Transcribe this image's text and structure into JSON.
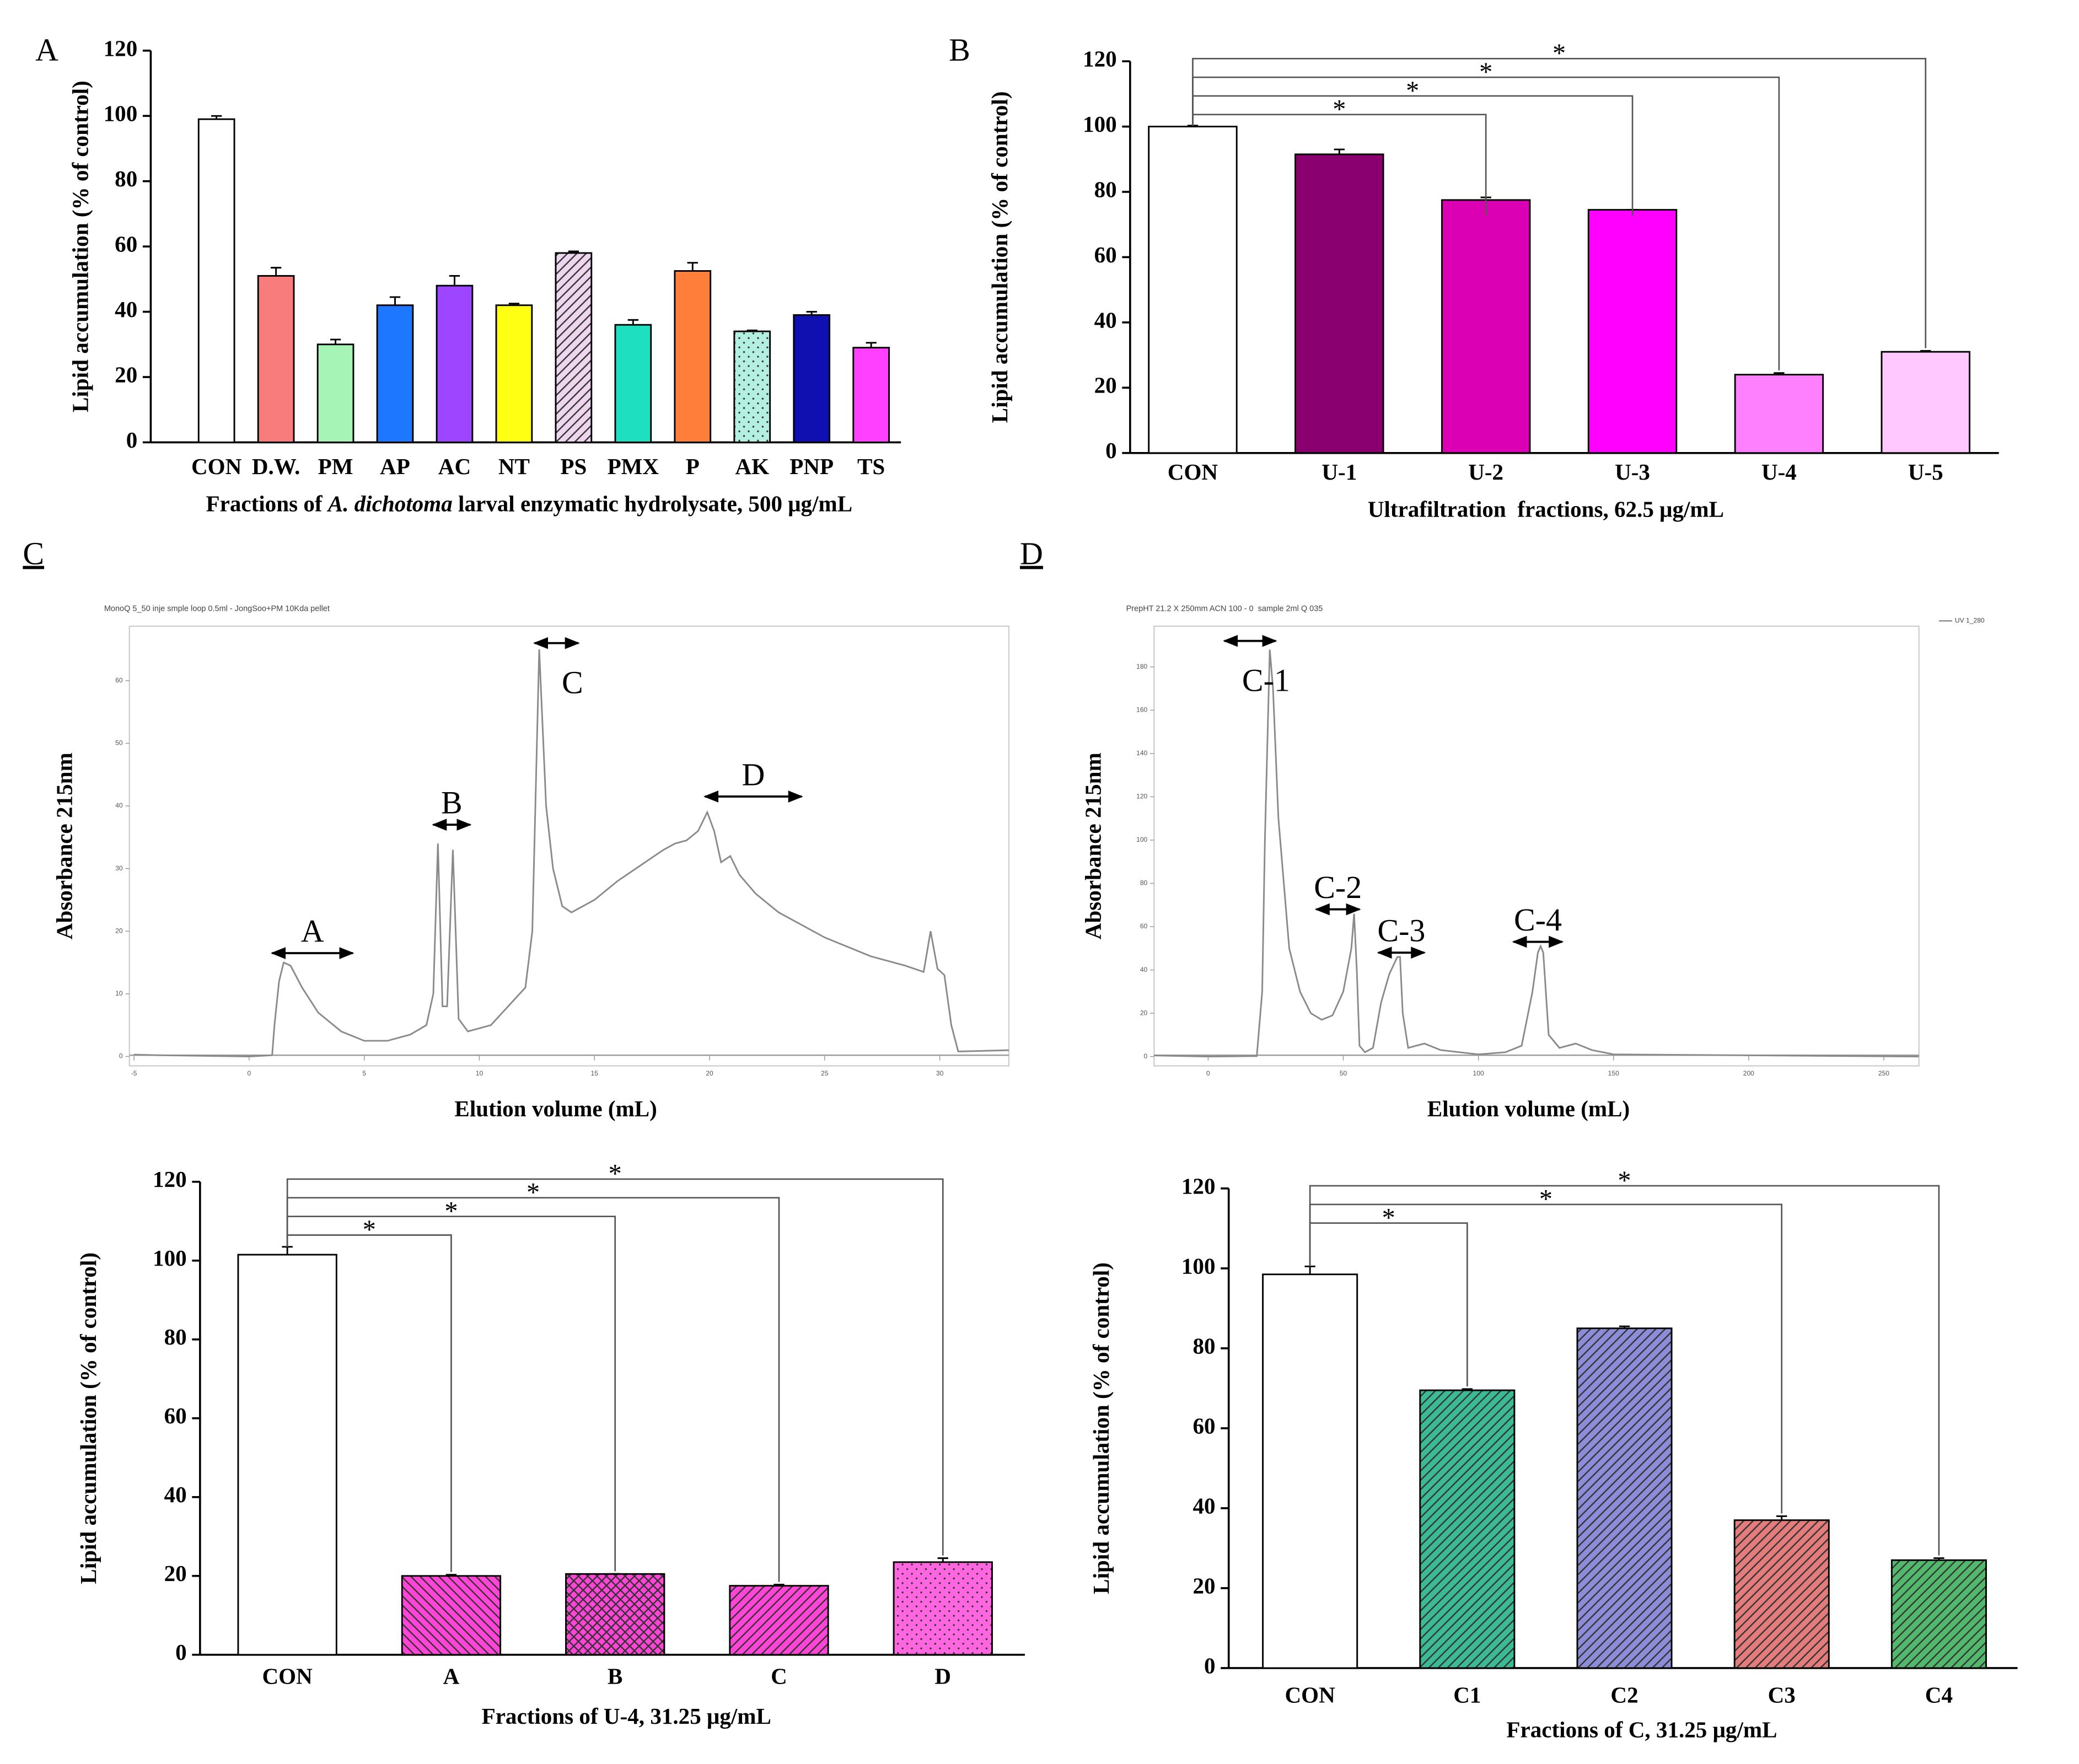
{
  "chart_data": [
    {
      "type": "bar",
      "panel": "A",
      "ylabel": "Lipid accumulation (% of control)",
      "xlabel": [
        "Fractions of ",
        "A. dichotoma",
        " larval enzymatic hydrolysate, 500 μg/mL"
      ],
      "categories": [
        "CON",
        "D.W.",
        "PM",
        "AP",
        "AC",
        "NT",
        "PS",
        "PMX",
        "P",
        "AK",
        "PNP",
        "TS"
      ],
      "values": [
        99,
        51,
        30,
        42,
        48,
        42,
        58,
        36,
        52.5,
        34,
        39,
        29
      ],
      "errors": [
        1,
        2.5,
        1.5,
        2.5,
        3,
        0.5,
        0.5,
        1.5,
        2.5,
        0.3,
        1,
        1.5
      ],
      "colors": [
        "#ffffff",
        "#f87c7c",
        "#a6f5b6",
        "#1e78ff",
        "#9d45ff",
        "#ffff14",
        "#efd6ef",
        "#1ee0c0",
        "#ff7f3a",
        "#b4f0e2",
        "#1010b0",
        "#ff40ff"
      ],
      "patterns": [
        "solid",
        "solid",
        "solid",
        "solid",
        "solid",
        "solid",
        "diagonal",
        "solid",
        "solid",
        "dots",
        "solid",
        "solid"
      ],
      "ylim": [
        0,
        120
      ],
      "yticks": [
        0,
        20,
        40,
        60,
        80,
        100,
        120
      ]
    },
    {
      "type": "bar",
      "panel": "B",
      "ylabel": "Lipid accumulation (% of control)",
      "xlabel": "Ultrafiltration  fractions, 62.5 μg/mL",
      "categories": [
        "CON",
        "U-1",
        "U-2",
        "U-3",
        "U-4",
        "U-5"
      ],
      "values": [
        100,
        91.5,
        77.5,
        74.5,
        24,
        31
      ],
      "errors": [
        0.3,
        1.5,
        0.8,
        0,
        0.5,
        0.3
      ],
      "colors": [
        "#ffffff",
        "#8b0070",
        "#dc00b4",
        "#ff00ff",
        "#ff80ff",
        "#ffc8ff"
      ],
      "patterns": [
        "solid",
        "solid",
        "solid",
        "solid",
        "solid",
        "solid"
      ],
      "significance": [
        null,
        null,
        "*",
        "*",
        "*",
        "*"
      ],
      "ylim": [
        0,
        120
      ],
      "yticks": [
        0,
        20,
        40,
        60,
        80,
        100,
        120
      ]
    },
    {
      "type": "line",
      "panel": "C",
      "subtitle": "MonoQ 5_50 inje smple loop 0.5ml - JongSoo+PM 10Kda pellet",
      "xlabel": "Elution volume (mL)",
      "ylabel": "Absorbance 215nm",
      "x": [
        -5,
        -4,
        0,
        1,
        1.1,
        1.3,
        1.5,
        1.8,
        2.3,
        3,
        4,
        5,
        6,
        7,
        7.7,
        8,
        8.2,
        8.4,
        8.6,
        8.85,
        9.1,
        9.5,
        10.5,
        11,
        11.5,
        12,
        12.3,
        12.6,
        12.9,
        13.2,
        13.6,
        14,
        15,
        16,
        17,
        18,
        18.5,
        19,
        19.5,
        19.9,
        20.2,
        20.5,
        20.9,
        21.3,
        22,
        23,
        25,
        27,
        28.5,
        29.3,
        29.6,
        29.9,
        30.2,
        30.5,
        30.8,
        33
      ],
      "series": [
        {
          "color": "#8a8a8a",
          "values": [
            0.3,
            0.2,
            0,
            0.2,
            5,
            12,
            15,
            14.5,
            11,
            7,
            4,
            2.5,
            2.5,
            3.5,
            5,
            10,
            34,
            8,
            8,
            33,
            6,
            4,
            5,
            7,
            9,
            11,
            20,
            65,
            40,
            30,
            24,
            23,
            25,
            28,
            30.5,
            33,
            34,
            34.5,
            36,
            39,
            36,
            31,
            32,
            29,
            26,
            23,
            19,
            16,
            14.5,
            13.5,
            20,
            14,
            13,
            5,
            0.8,
            1
          ]
        }
      ],
      "annotations": [
        {
          "text": "A",
          "x": [
            1,
            4.5
          ],
          "y": 16.5
        },
        {
          "text": "B",
          "x": [
            8,
            9.6
          ],
          "y": 37
        },
        {
          "text": "C",
          "x": [
            12.4,
            14.3
          ],
          "y": 66
        },
        {
          "text": "D",
          "x": [
            19.8,
            24
          ],
          "y": 41.5
        }
      ],
      "xlim": [
        -5.2,
        33
      ],
      "ylim": [
        -1.5,
        68.7
      ],
      "xticks": [
        -5,
        0,
        5,
        10,
        15,
        20,
        25,
        30
      ],
      "yticks": [
        0,
        10,
        20,
        30,
        40,
        50,
        60
      ]
    },
    {
      "type": "line",
      "panel": "D",
      "subtitle": "PrepHT 21.2 X 250mm ACN 100 - 0  sample 2ml Q 035",
      "xlabel": "Elution volume (mL)",
      "ylabel": "Absorbance 215nm",
      "x": [
        -20,
        0,
        18,
        20,
        21,
        22.8,
        24,
        26,
        28,
        30,
        34,
        38,
        42,
        46,
        50,
        53,
        54,
        55,
        56,
        58,
        61,
        64,
        67,
        70,
        71,
        72,
        74,
        80,
        86,
        100,
        110,
        116,
        120,
        122,
        123,
        124,
        126,
        130,
        136,
        142,
        150,
        263
      ],
      "series": [
        {
          "name": "UV 1_280",
          "color": "#8a8a8a",
          "values": [
            0.5,
            0,
            0.2,
            30,
            100,
            188,
            170,
            110,
            80,
            50,
            30,
            20,
            17,
            19,
            30,
            50,
            66,
            40,
            5,
            2,
            4,
            25,
            38,
            46,
            46,
            20,
            4,
            6,
            3,
            1,
            2,
            5,
            30,
            48,
            51,
            48,
            10,
            4,
            6,
            3,
            1,
            0
          ]
        }
      ],
      "annotations": [
        {
          "text": "C-1",
          "x": [
            6,
            25
          ],
          "y": 192
        },
        {
          "text": "C-2",
          "x": [
            40,
            56
          ],
          "y": 68
        },
        {
          "text": "C-3",
          "x": [
            63,
            80
          ],
          "y": 48
        },
        {
          "text": "C-4",
          "x": [
            113,
            131
          ],
          "y": 53
        }
      ],
      "xlim": [
        -20,
        263
      ],
      "ylim": [
        -4.3,
        198.8
      ],
      "xticks": [
        0,
        50,
        100,
        150,
        200,
        250
      ],
      "yticks": [
        0,
        20,
        40,
        60,
        80,
        100,
        120,
        140,
        160,
        180
      ]
    },
    {
      "type": "bar",
      "ylabel": "Lipid accumulation (% of control)",
      "xlabel": "Fractions of U-4, 31.25 μg/mL",
      "categories": [
        "CON",
        "A",
        "B",
        "C",
        "D"
      ],
      "values": [
        101.5,
        20,
        20.5,
        17.5,
        23.5
      ],
      "errors": [
        2,
        0.3,
        0,
        0.3,
        1
      ],
      "colors": [
        "#ffffff",
        "#ff44d8",
        "#ff44d8",
        "#ff44d8",
        "#ff66e0"
      ],
      "patterns": [
        "solid",
        "backdiagonal",
        "crosshatch",
        "diagonal",
        "dots"
      ],
      "significance": [
        null,
        "*",
        "*",
        "*",
        "*"
      ],
      "ylim": [
        0,
        120
      ],
      "yticks": [
        0,
        20,
        40,
        60,
        80,
        100,
        120
      ]
    },
    {
      "type": "bar",
      "ylabel": "Lipid accumulation (% of control)",
      "xlabel": "Fractions of C, 31.25 μg/mL",
      "categories": [
        "CON",
        "C1",
        "C2",
        "C3",
        "C4"
      ],
      "values": [
        98.5,
        69.5,
        85,
        37,
        27
      ],
      "errors": [
        2,
        0.3,
        0.5,
        1,
        0.5
      ],
      "colors": [
        "#ffffff",
        "#3cba94",
        "#8c8cd8",
        "#e47c7c",
        "#52b86c"
      ],
      "patterns": [
        "solid",
        "diagonal",
        "diagonal",
        "diagonal",
        "diagonal"
      ],
      "significance": [
        null,
        "*",
        null,
        "*",
        "*"
      ],
      "ylim": [
        0,
        120
      ],
      "yticks": [
        0,
        20,
        40,
        60,
        80,
        100,
        120
      ]
    }
  ]
}
